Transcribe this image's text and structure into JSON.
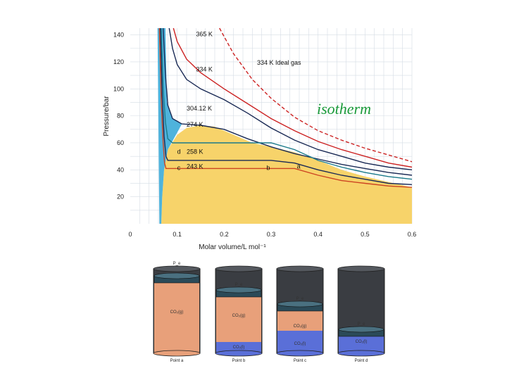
{
  "overlay_text": "isotherm",
  "chart_data": {
    "type": "line",
    "xlabel": "Molar volume/L mol⁻¹",
    "ylabel": "Pressure/bar",
    "xlim": [
      0,
      0.6
    ],
    "ylim": [
      0,
      145
    ],
    "x_ticks": [
      "0",
      "0.1",
      "0.2",
      "0.3",
      "0.4",
      "0.5",
      "0.6"
    ],
    "y_ticks": [
      "20",
      "40",
      "60",
      "80",
      "100",
      "120",
      "140"
    ],
    "grid": true,
    "regions": [
      {
        "name": "liquid",
        "color": "#4fb3dc"
      },
      {
        "name": "two-phase",
        "color": "#f7d36a"
      }
    ],
    "series": [
      {
        "name": "365 K",
        "color": "#cc2222",
        "dashed": false,
        "points": [
          [
            0.092,
            145
          ],
          [
            0.1,
            135
          ],
          [
            0.12,
            122
          ],
          [
            0.15,
            112
          ],
          [
            0.2,
            100
          ],
          [
            0.25,
            89
          ],
          [
            0.3,
            78
          ],
          [
            0.35,
            69
          ],
          [
            0.4,
            61
          ],
          [
            0.45,
            55
          ],
          [
            0.5,
            50
          ],
          [
            0.55,
            45
          ],
          [
            0.6,
            42
          ]
        ]
      },
      {
        "name": "334 K",
        "color": "#1a2a55",
        "dashed": false,
        "points": [
          [
            0.083,
            145
          ],
          [
            0.09,
            130
          ],
          [
            0.1,
            118
          ],
          [
            0.12,
            107
          ],
          [
            0.15,
            100
          ],
          [
            0.2,
            92
          ],
          [
            0.25,
            82
          ],
          [
            0.3,
            71
          ],
          [
            0.35,
            62
          ],
          [
            0.4,
            55
          ],
          [
            0.45,
            50
          ],
          [
            0.5,
            45
          ],
          [
            0.55,
            42
          ],
          [
            0.6,
            40
          ]
        ]
      },
      {
        "name": "334 K Ideal gas",
        "color": "#cc2222",
        "dashed": true,
        "points": [
          [
            0.19,
            145
          ],
          [
            0.22,
            126
          ],
          [
            0.26,
            107
          ],
          [
            0.3,
            93
          ],
          [
            0.35,
            79
          ],
          [
            0.4,
            69
          ],
          [
            0.45,
            62
          ],
          [
            0.5,
            56
          ],
          [
            0.55,
            51
          ],
          [
            0.6,
            46
          ]
        ]
      },
      {
        "name": "304.12 K",
        "color": "#1a2a55",
        "dashed": false,
        "points": [
          [
            0.07,
            145
          ],
          [
            0.075,
            110
          ],
          [
            0.08,
            88
          ],
          [
            0.09,
            78
          ],
          [
            0.11,
            74
          ],
          [
            0.13,
            73.5
          ],
          [
            0.15,
            73
          ],
          [
            0.2,
            70
          ],
          [
            0.25,
            63
          ],
          [
            0.3,
            57
          ],
          [
            0.35,
            52
          ],
          [
            0.4,
            48
          ],
          [
            0.45,
            44
          ],
          [
            0.5,
            41
          ],
          [
            0.55,
            38
          ],
          [
            0.6,
            36
          ]
        ]
      },
      {
        "name": "274 K",
        "color": "#1a7a8a",
        "dashed": false,
        "points": [
          [
            0.066,
            145
          ],
          [
            0.07,
            100
          ],
          [
            0.075,
            75
          ],
          [
            0.08,
            63
          ],
          [
            0.09,
            60
          ],
          [
            0.3,
            60
          ],
          [
            0.35,
            55
          ],
          [
            0.4,
            47
          ],
          [
            0.45,
            42
          ],
          [
            0.5,
            38
          ],
          [
            0.55,
            35
          ],
          [
            0.6,
            33
          ]
        ]
      },
      {
        "name": "258 K",
        "color": "#1a2a55",
        "dashed": false,
        "points": [
          [
            0.064,
            145
          ],
          [
            0.068,
            95
          ],
          [
            0.072,
            65
          ],
          [
            0.076,
            50
          ],
          [
            0.08,
            47
          ],
          [
            0.3,
            47
          ],
          [
            0.35,
            45
          ],
          [
            0.4,
            40
          ],
          [
            0.45,
            36
          ],
          [
            0.5,
            33
          ],
          [
            0.55,
            30
          ],
          [
            0.6,
            29
          ]
        ]
      },
      {
        "name": "243 K",
        "color": "#cc4422",
        "dashed": false,
        "points": [
          [
            0.062,
            145
          ],
          [
            0.066,
            90
          ],
          [
            0.07,
            60
          ],
          [
            0.073,
            45
          ],
          [
            0.076,
            41
          ],
          [
            0.35,
            41
          ],
          [
            0.4,
            36
          ],
          [
            0.45,
            32
          ],
          [
            0.5,
            30
          ],
          [
            0.55,
            28
          ],
          [
            0.6,
            27
          ]
        ]
      }
    ],
    "curve_labels": [
      {
        "text": "365 K",
        "x": 0.14,
        "y": 139
      },
      {
        "text": "334 K",
        "x": 0.14,
        "y": 113
      },
      {
        "text": "334 K Ideal gas",
        "x": 0.27,
        "y": 118
      },
      {
        "text": "304.12 K",
        "x": 0.12,
        "y": 84
      },
      {
        "text": "274 K",
        "x": 0.12,
        "y": 72
      },
      {
        "text": "258 K",
        "x": 0.12,
        "y": 52
      },
      {
        "text": "243 K",
        "x": 0.12,
        "y": 41
      }
    ],
    "point_labels": [
      {
        "text": "a",
        "x": 0.355,
        "y": 41
      },
      {
        "text": "b",
        "x": 0.29,
        "y": 40
      },
      {
        "text": "c",
        "x": 0.1,
        "y": 40
      },
      {
        "text": "d",
        "x": 0.1,
        "y": 52
      }
    ]
  },
  "cylinders": [
    {
      "caption": "Point a",
      "top_label": "P_e",
      "labels": [
        "CO₂(g)"
      ]
    },
    {
      "caption": "Point b",
      "top_label": "P_e",
      "labels": [
        "CO₂(g)",
        "CO₂(l)"
      ]
    },
    {
      "caption": "Point c",
      "top_label": "P_e",
      "labels": [
        "CO₂(g)",
        "CO₂(l)"
      ]
    },
    {
      "caption": "Point d",
      "top_label": "P_e",
      "labels": [
        "CO₂(l)"
      ]
    }
  ]
}
